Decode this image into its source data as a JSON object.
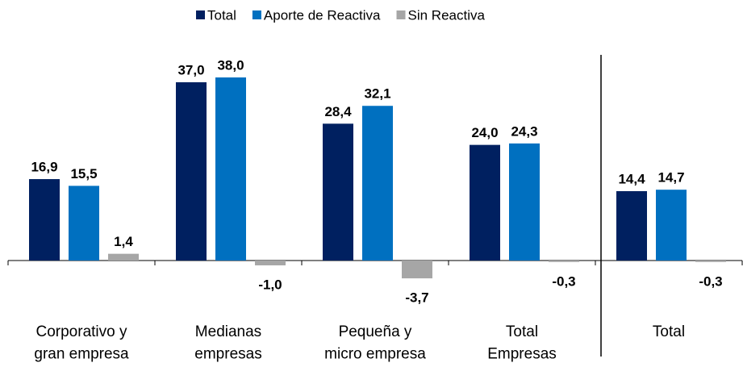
{
  "chart_data": {
    "type": "bar",
    "categories": [
      "Corporativo y\ngran empresa",
      "Medianas\nempresas",
      "Pequeña y\nmicro empresa",
      "Total\nEmpresas",
      "Total"
    ],
    "series": [
      {
        "name": "Total",
        "color": "#002060",
        "values": [
          16.9,
          37.0,
          28.4,
          24.0,
          14.4
        ],
        "value_labels": [
          "16,9",
          "37,0",
          "28,4",
          "24,0",
          "14,4"
        ]
      },
      {
        "name": "Aporte de Reactiva",
        "color": "#0070c0",
        "values": [
          15.5,
          38.0,
          32.1,
          24.3,
          14.7
        ],
        "value_labels": [
          "15,5",
          "38,0",
          "32,1",
          "24,3",
          "14,7"
        ]
      },
      {
        "name": "Sin Reactiva",
        "color": "#a6a6a6",
        "values": [
          1.4,
          -1.0,
          -3.7,
          -0.3,
          -0.3
        ],
        "value_labels": [
          "1,4",
          "-1,0",
          "-3,7",
          "-0,3",
          "-0,3"
        ]
      }
    ],
    "legend": "top"
  }
}
